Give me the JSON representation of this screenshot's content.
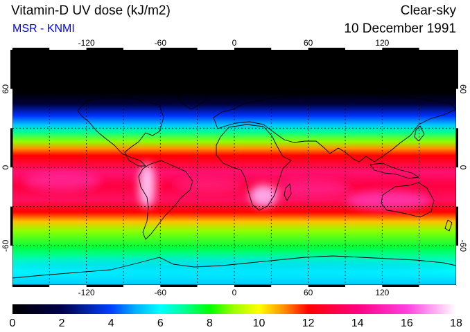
{
  "header": {
    "title": "Vitamin-D UV dose (kJ/m2)",
    "source": "MSR - KNMI",
    "condition": "Clear-sky",
    "date": "10 December 1991"
  },
  "map": {
    "projection": "equirectangular",
    "lon_range": [
      -180,
      180
    ],
    "lat_range": [
      -90,
      90
    ],
    "lon_ticks": [
      -120,
      -60,
      0,
      60,
      120
    ],
    "lat_ticks": [
      60,
      0,
      -60
    ],
    "lon_tick_labels": [
      "-120",
      "-60",
      "0",
      "60",
      "120"
    ],
    "lat_tick_labels": [
      "60",
      "0",
      "-60"
    ],
    "grid": "dotted every 30 degrees",
    "coastline_color": "#000000"
  },
  "colorbar": {
    "min": 0,
    "max": 18,
    "tick_labels": [
      "0",
      "2",
      "4",
      "6",
      "8",
      "10",
      "12",
      "14",
      "16",
      "18"
    ],
    "stops": [
      {
        "value": 0,
        "color": "#000000"
      },
      {
        "value": 2,
        "color": "#00004a"
      },
      {
        "value": 4,
        "color": "#0040ff"
      },
      {
        "value": 5,
        "color": "#00b0ff"
      },
      {
        "value": 6,
        "color": "#00ffff"
      },
      {
        "value": 7,
        "color": "#00ff90"
      },
      {
        "value": 8,
        "color": "#00ff00"
      },
      {
        "value": 9,
        "color": "#a0ff00"
      },
      {
        "value": 10,
        "color": "#ffff00"
      },
      {
        "value": 11,
        "color": "#ff9000"
      },
      {
        "value": 12,
        "color": "#ff0000"
      },
      {
        "value": 14,
        "color": "#ff0080"
      },
      {
        "value": 16,
        "color": "#ff40e0"
      },
      {
        "value": 18,
        "color": "#ffffff"
      }
    ]
  }
}
